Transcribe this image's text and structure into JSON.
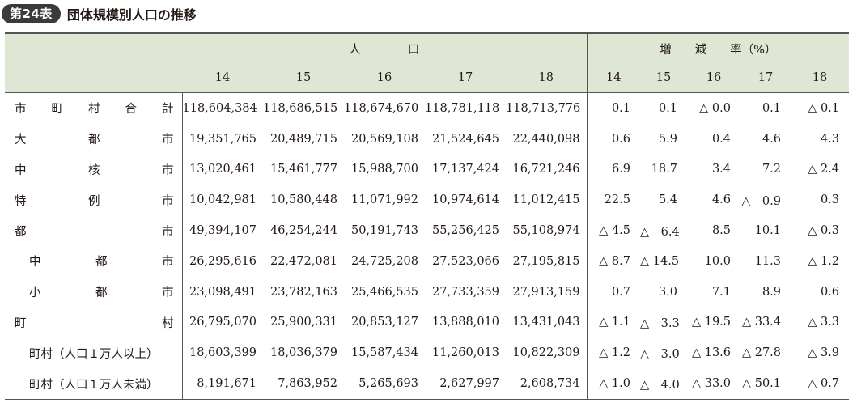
{
  "title": {
    "badge": "第24表",
    "text": "団体規模別人口の推移"
  },
  "headers": {
    "population_group": "人　　　　口",
    "rate_group": "増　　減　　率（%）",
    "years": [
      "14",
      "15",
      "16",
      "17",
      "18"
    ]
  },
  "rows": [
    {
      "label": "市町村合計",
      "chars": [
        "市",
        "町",
        "村",
        "合",
        "計"
      ],
      "pop": [
        "118,604,384",
        "118,686,515",
        "118,674,670",
        "118,781,118",
        "118,713,776"
      ],
      "rate": [
        "0.1",
        "0.1",
        "△ 0.0",
        "0.1",
        "△ 0.1"
      ]
    },
    {
      "label": "大都市",
      "chars": [
        "大",
        "都",
        "市"
      ],
      "pop": [
        "19,351,765",
        "20,489,715",
        "20,569,108",
        "21,524,645",
        "22,440,098"
      ],
      "rate": [
        "0.6",
        "5.9",
        "0.4",
        "4.6",
        "4.3"
      ]
    },
    {
      "label": "中核市",
      "chars": [
        "中",
        "核",
        "市"
      ],
      "pop": [
        "13,020,461",
        "15,461,777",
        "15,988,700",
        "17,137,424",
        "16,721,246"
      ],
      "rate": [
        "6.9",
        "18.7",
        "3.4",
        "7.2",
        "△ 2.4"
      ]
    },
    {
      "label": "特例市",
      "chars": [
        "特",
        "例",
        "市"
      ],
      "pop": [
        "10,042,981",
        "10,580,448",
        "11,071,992",
        "10,974,614",
        "11,012,415"
      ],
      "rate": [
        "22.5",
        "5.4",
        "4.6",
        "△　0.9",
        "0.3"
      ]
    },
    {
      "label": "都市",
      "chars": [
        "都",
        "市"
      ],
      "pop": [
        "49,394,107",
        "46,254,244",
        "50,191,743",
        "55,256,425",
        "55,108,974"
      ],
      "rate": [
        "△ 4.5",
        "△　6.4",
        "8.5",
        "10.1",
        "△ 0.3"
      ]
    },
    {
      "label": "中都市",
      "chars": [
        "中",
        "都",
        "市"
      ],
      "indent": true,
      "pop": [
        "26,295,616",
        "22,472,081",
        "24,725,208",
        "27,523,066",
        "27,195,815"
      ],
      "rate": [
        "△ 8.7",
        "△ 14.5",
        "10.0",
        "11.3",
        "△ 1.2"
      ]
    },
    {
      "label": "小都市",
      "chars": [
        "小",
        "都",
        "市"
      ],
      "indent": true,
      "pop": [
        "23,098,491",
        "23,782,163",
        "25,466,535",
        "27,733,359",
        "27,913,159"
      ],
      "rate": [
        "0.7",
        "3.0",
        "7.1",
        "8.9",
        "0.6"
      ]
    },
    {
      "label": "町村",
      "chars": [
        "町",
        "村"
      ],
      "pop": [
        "26,795,070",
        "25,900,331",
        "20,853,127",
        "13,888,010",
        "13,431,043"
      ],
      "rate": [
        "△ 1.1",
        "△　3.3",
        "△ 19.5",
        "△ 33.4",
        "△ 3.3"
      ]
    },
    {
      "label": "町村（人口１万人以上）",
      "plain": true,
      "pop": [
        "18,603,399",
        "18,036,379",
        "15,587,434",
        "11,260,013",
        "10,822,309"
      ],
      "rate": [
        "△ 1.2",
        "△　3.0",
        "△ 13.6",
        "△ 27.8",
        "△ 3.9"
      ]
    },
    {
      "label": "町村（人口１万人未満）",
      "plain": true,
      "pop": [
        "8,191,671",
        "7,863,952",
        "5,265,693",
        "2,627,997",
        "2,608,734"
      ],
      "rate": [
        "△ 1.0",
        "△　4.0",
        "△ 33.0",
        "△ 50.1",
        "△ 0.7"
      ]
    }
  ]
}
